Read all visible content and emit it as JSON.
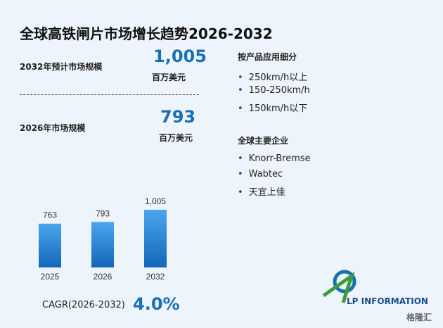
{
  "title": "全球高铁闸片市场增长趋势2026-2032",
  "stats": [
    {
      "label": "2032年预计市场规模",
      "value": "1,005",
      "unit": "百万美元"
    },
    {
      "label": "2026年市场规模",
      "value": "793",
      "unit": "百万美元"
    }
  ],
  "segments": {
    "heading": "按产品应用细分",
    "items": [
      "250km/h以上",
      "150-250km/h",
      "150km/h以下"
    ]
  },
  "companies": {
    "heading": "全球主要企业",
    "items": [
      "Knorr-Bremse",
      "Wabtec",
      "天宜上佳"
    ]
  },
  "cagr": {
    "label": "CAGR(2026-2032)",
    "value": "4.0%"
  },
  "logo": "LP INFORMATION",
  "watermark": "格隆汇",
  "chart_data": {
    "type": "bar",
    "categories": [
      "2025",
      "2026",
      "2032"
    ],
    "values": [
      763,
      793,
      1005
    ],
    "value_labels": [
      "763",
      "793",
      "1,005"
    ],
    "color": "#1f7fd6"
  }
}
